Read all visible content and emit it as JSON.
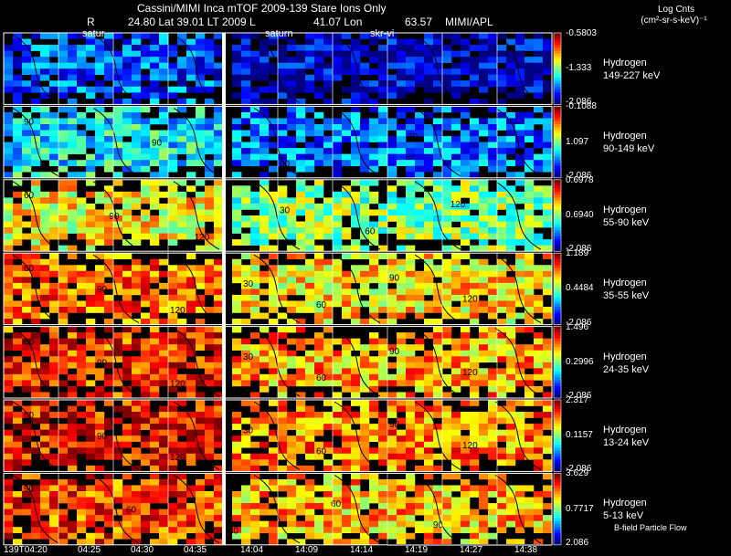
{
  "header": {
    "title": "Cassini/MIMI Inca mTOF  2009-139   Stare    Ions Only",
    "r_label": "R",
    "r_value": "24.80 Lat 39.01 LT 2009 L",
    "lon_value": "41.07 Lon",
    "l_value": "63.57",
    "org": "MIMI/APL",
    "units_line1": "Log Cnts",
    "units_line2": "(cm²-sr-s-keV)⁻¹"
  },
  "overlay_labels": [
    "satur",
    "saturn",
    "skr-vi"
  ],
  "footer_note": "B-field  Particle Flow",
  "chart_data": {
    "type": "heatmap",
    "title": "Cassini/MIMI Inca mTOF  2009-139   Stare    Ions Only",
    "xlabel": "",
    "ylabel": "",
    "time_labels": [
      "139T04:20",
      "04:25",
      "04:30",
      "04:35",
      "14:04",
      "14:09",
      "14:14",
      "14:19",
      "14:27",
      "14:38"
    ],
    "rows": [
      {
        "species": "Hydrogen",
        "energy": "149-227 keV",
        "cb_max": "-0.5803",
        "cb_mid": "-1.333",
        "cb_min": "-2.086",
        "level": 0.12,
        "contours": []
      },
      {
        "species": "Hydrogen",
        "energy": "90-149 keV",
        "cb_max": "-0.1088",
        "cb_mid": "1.097",
        "cb_min": "-2.086",
        "level": 0.28,
        "contours": [
          "90",
          "90",
          "60",
          "30"
        ]
      },
      {
        "species": "Hydrogen",
        "energy": "55-90 keV",
        "cb_max": "0.6978",
        "cb_mid": "0.6940",
        "cb_min": "-2.086",
        "level": 0.55,
        "contours": [
          "60",
          "90",
          "120",
          "30",
          "60",
          "120"
        ]
      },
      {
        "species": "Hydrogen",
        "energy": "35-55 keV",
        "cb_max": "1.189",
        "cb_mid": "0.4484",
        "cb_min": "-2.086",
        "level": 0.7,
        "contours": [
          "60",
          "90",
          "120",
          "30",
          "60",
          "90",
          "120"
        ]
      },
      {
        "species": "Hydrogen",
        "energy": "24-35 keV",
        "cb_max": "1.496",
        "cb_mid": "0.2996",
        "cb_min": "-2.086",
        "level": 0.76,
        "contours": [
          "60",
          "90",
          "120",
          "30",
          "60",
          "90",
          "120"
        ]
      },
      {
        "species": "Hydrogen",
        "energy": "13-24 keV",
        "cb_max": "2.317",
        "cb_mid": "0.1157",
        "cb_min": "-2.086",
        "level": 0.8,
        "contours": [
          "60",
          "90",
          "120",
          "30",
          "60",
          "90",
          "120"
        ]
      },
      {
        "species": "Hydrogen",
        "energy": "5-13 keV",
        "cb_max": "3.629",
        "cb_mid": "0.7717",
        "cb_min": "2.086",
        "level": 0.74,
        "contours": [
          "90",
          "60",
          "30",
          "60",
          "90"
        ]
      }
    ]
  },
  "colors": {
    "background": "#000000",
    "grid": "#ffffff",
    "contour": "#000000"
  }
}
